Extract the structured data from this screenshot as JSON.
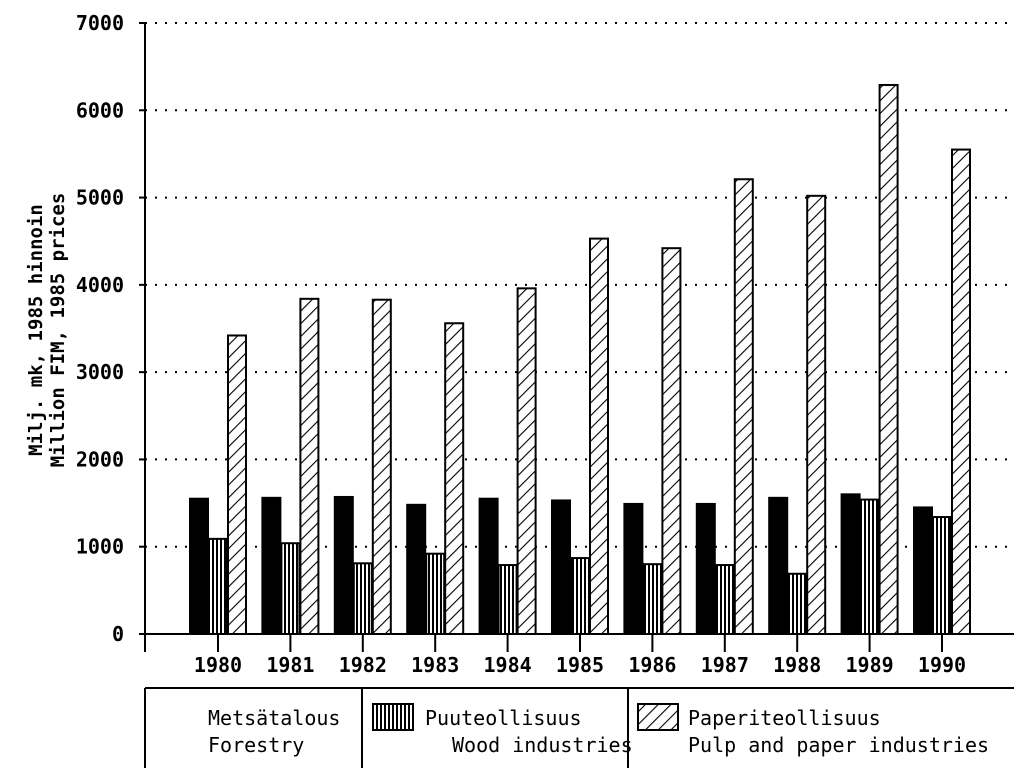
{
  "chart_data": {
    "type": "bar",
    "categories": [
      "1980",
      "1981",
      "1982",
      "1983",
      "1984",
      "1985",
      "1986",
      "1987",
      "1988",
      "1989",
      "1990"
    ],
    "series": [
      {
        "name": "Metsätalous / Forestry",
        "key": "forestry",
        "pattern": "solid",
        "values": [
          1550,
          1560,
          1570,
          1480,
          1550,
          1530,
          1490,
          1490,
          1560,
          1600,
          1450
        ]
      },
      {
        "name": "Puuteollisuus / Wood industries",
        "key": "wood",
        "pattern": "vertical-lines",
        "values": [
          1090,
          1040,
          810,
          920,
          790,
          870,
          800,
          790,
          690,
          1540,
          1340
        ]
      },
      {
        "name": "Paperiteollisuus / Pulp and paper industries",
        "key": "paper",
        "pattern": "diagonal-hatch",
        "values": [
          3420,
          3840,
          3830,
          3560,
          3960,
          4530,
          4420,
          5210,
          5020,
          6290,
          5550
        ]
      }
    ],
    "y_ticks": [
      "0",
      "1000",
      "2000",
      "3000",
      "4000",
      "5000",
      "6000",
      "7000"
    ],
    "ylim": [
      0,
      7000
    ],
    "grid": "horizontal dotted",
    "ylabel_line1": "Milj. mk, 1985 hinnoin",
    "ylabel_line2": "Million FIM, 1985 prices",
    "legend": {
      "placement": "bottom",
      "items": [
        {
          "line1": "Metsätalous",
          "line2": "Forestry"
        },
        {
          "line1": "Puuteollisuus",
          "line2": "Wood industries"
        },
        {
          "line1": "Paperiteollisuus",
          "line2": "Pulp and paper industries"
        }
      ]
    }
  }
}
